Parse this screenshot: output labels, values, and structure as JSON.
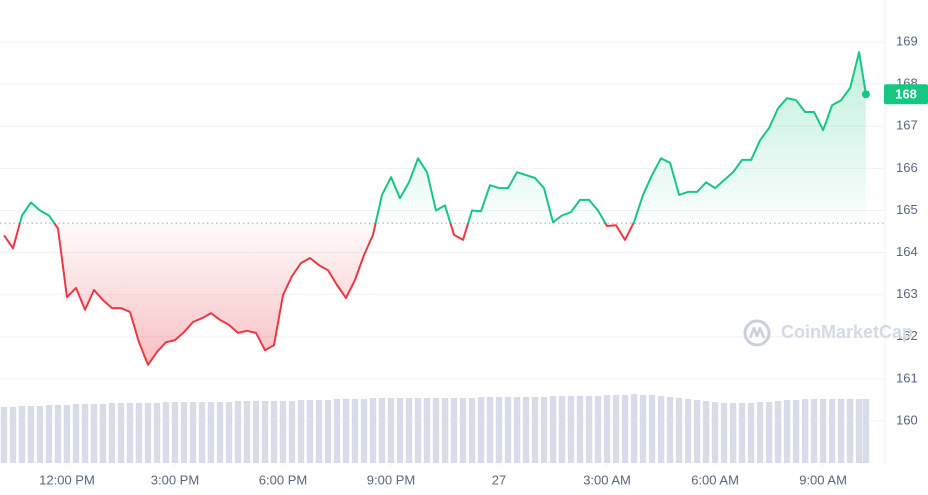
{
  "chart_data": {
    "type": "line",
    "x": [
      10.25,
      10.5,
      10.75,
      11,
      11.25,
      11.5,
      11.75,
      12,
      12.25,
      12.5,
      12.75,
      13,
      13.25,
      13.5,
      13.75,
      14,
      14.25,
      14.5,
      14.75,
      15,
      15.25,
      15.5,
      15.75,
      16,
      16.25,
      16.5,
      16.75,
      17,
      17.25,
      17.5,
      17.75,
      18,
      18.25,
      18.5,
      18.75,
      19,
      19.25,
      19.5,
      19.75,
      20,
      20.25,
      20.5,
      20.75,
      21,
      21.25,
      21.5,
      21.75,
      22,
      22.25,
      22.5,
      22.75,
      23,
      23.25,
      23.5,
      23.75,
      24,
      24.25,
      24.5,
      24.75,
      25,
      25.25,
      25.5,
      25.75,
      26,
      26.25,
      26.5,
      26.75,
      27,
      27.25,
      27.5,
      27.75,
      28,
      28.25,
      28.5,
      28.75,
      29,
      29.25,
      29.5,
      29.75,
      30,
      30.25,
      30.5,
      30.75,
      31,
      31.25,
      31.5,
      31.75,
      32,
      32.25,
      32.5,
      32.75,
      33,
      33.25,
      33.5,
      33.75,
      34,
      34.19
    ],
    "series": [
      {
        "name": "Price",
        "axis": "y",
        "values": [
          164.41,
          164.1,
          164.88,
          165.19,
          165.0,
          164.88,
          164.57,
          162.94,
          163.16,
          162.64,
          163.11,
          162.87,
          162.68,
          162.68,
          162.59,
          161.87,
          161.33,
          161.64,
          161.87,
          161.92,
          162.11,
          162.35,
          162.44,
          162.56,
          162.4,
          162.28,
          162.09,
          162.14,
          162.09,
          161.68,
          161.8,
          162.99,
          163.44,
          163.75,
          163.87,
          163.7,
          163.58,
          163.23,
          162.92,
          163.35,
          163.94,
          164.42,
          165.37,
          165.79,
          165.29,
          165.67,
          166.24,
          165.91,
          165.0,
          165.12,
          164.42,
          164.3,
          165.0,
          164.98,
          165.6,
          165.53,
          165.53,
          165.91,
          165.84,
          165.77,
          165.53,
          164.72,
          164.88,
          164.96,
          165.25,
          165.25,
          165.0,
          164.63,
          164.65,
          164.3,
          164.72,
          165.37,
          165.84,
          166.24,
          166.13,
          165.37,
          165.44,
          165.44,
          165.67,
          165.53,
          165.72,
          165.91,
          166.2,
          166.2,
          166.67,
          166.96,
          167.43,
          167.67,
          167.62,
          167.34,
          167.34,
          166.91,
          167.5,
          167.62,
          167.91,
          168.76,
          167.76
        ]
      },
      {
        "name": "Volume",
        "axis": "y2",
        "color": "#d8dbe8",
        "values": [
          56,
          56,
          57,
          57,
          57,
          58,
          58,
          58,
          59,
          59,
          59,
          59,
          60,
          60,
          60,
          60,
          60,
          60,
          61,
          61,
          61,
          61,
          61,
          61,
          61,
          61,
          62,
          62,
          62,
          62,
          62,
          62,
          62,
          63,
          63,
          63,
          63,
          64,
          64,
          64,
          64,
          65,
          65,
          65,
          65,
          65,
          65,
          65,
          65,
          65,
          65,
          65,
          65,
          66,
          66,
          66,
          66,
          66,
          66,
          66,
          66,
          67,
          67,
          67,
          67,
          67,
          67,
          68,
          68,
          68,
          69,
          68,
          68,
          67,
          66,
          65,
          64,
          63,
          62,
          61,
          60,
          60,
          60,
          60,
          61,
          61,
          62,
          63,
          63,
          64,
          64,
          64,
          64,
          64,
          64,
          64,
          64
        ]
      }
    ],
    "up_color": "#16c784",
    "down_color": "#ea3943",
    "baseline": 164.7,
    "last_value_label": "168",
    "watermark": "CoinMarketCap",
    "xlim": [
      10.14,
      34.72
    ],
    "xticks": [
      {
        "value": 12,
        "label": "12:00 PM"
      },
      {
        "value": 15,
        "label": "3:00 PM"
      },
      {
        "value": 18,
        "label": "6:00 PM"
      },
      {
        "value": 21,
        "label": "9:00 PM"
      },
      {
        "value": 24,
        "label": "27"
      },
      {
        "value": 27,
        "label": "3:00 AM"
      },
      {
        "value": 30,
        "label": "6:00 AM"
      },
      {
        "value": 33,
        "label": "9:00 AM"
      }
    ],
    "ylim": [
      159,
      170
    ],
    "yticks": [
      160,
      161,
      162,
      163,
      164,
      165,
      166,
      167,
      168,
      169
    ],
    "y2lim": [
      0,
      100
    ],
    "grid": true
  }
}
